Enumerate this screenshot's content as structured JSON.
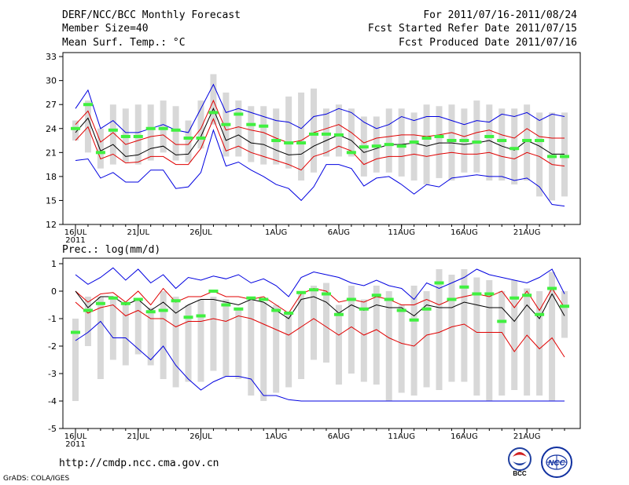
{
  "header": {
    "title": "DERF/NCC/BCC Monthly Forecast",
    "member_size": "Member Size=40",
    "top_var": "Mean Surf. Temp.: °C",
    "period": "For 2011/07/16-2011/08/24",
    "fcst_started": "Fcst Started Refer Date 2011/07/15",
    "fcst_produced": "Fcst Produced Date 2011/07/16"
  },
  "footer": {
    "url": "http://cmdp.ncc.cma.gov.cn",
    "grads": "GrADS: COLA/IGES",
    "logos": [
      "BCC",
      "NCC"
    ]
  },
  "colors": {
    "ensemble_mean": "#000000",
    "spread": "#e00000",
    "extreme": "#0000e0",
    "observed": "#40f040",
    "box": "#d8d8d8"
  },
  "chart_data": [
    {
      "type": "line",
      "title": "Mean Surf. Temp.: °C",
      "x_count": 40,
      "xtick_labels": [
        {
          "index": 0,
          "label": "16JUL",
          "sub": "2011"
        },
        {
          "index": 5,
          "label": "21JUL"
        },
        {
          "index": 10,
          "label": "26JUL"
        },
        {
          "index": 16,
          "label": "1AUG"
        },
        {
          "index": 21,
          "label": "6AUG"
        },
        {
          "index": 26,
          "label": "11AUG"
        },
        {
          "index": 31,
          "label": "16AUG"
        },
        {
          "index": 36,
          "label": "21AUG"
        }
      ],
      "ylim": [
        12,
        33.5
      ],
      "yticks": [
        12,
        15,
        18,
        21,
        24,
        27,
        30,
        33
      ],
      "series": [
        {
          "name": "max",
          "color": "blue",
          "values": [
            26.5,
            28.8,
            24.0,
            25.0,
            23.5,
            23.5,
            24.0,
            24.5,
            23.8,
            23.5,
            26.5,
            29.5,
            26.0,
            26.5,
            26.0,
            25.5,
            25.0,
            24.8,
            24.0,
            25.5,
            25.8,
            26.5,
            26.0,
            24.8,
            24.0,
            24.5,
            25.5,
            25.0,
            25.5,
            25.5,
            25.0,
            24.5,
            25.0,
            24.8,
            25.8,
            25.5,
            26.0,
            25.0,
            25.8,
            25.5
          ]
        },
        {
          "name": "upper",
          "color": "red",
          "values": [
            24.5,
            26.2,
            22.3,
            23.5,
            22.0,
            22.5,
            23.0,
            23.2,
            22.0,
            22.0,
            24.0,
            27.5,
            23.8,
            24.2,
            23.8,
            23.5,
            22.8,
            22.2,
            22.5,
            23.5,
            24.0,
            24.5,
            23.5,
            22.2,
            22.8,
            23.0,
            23.2,
            23.2,
            23.0,
            23.2,
            23.5,
            23.0,
            23.5,
            23.8,
            23.2,
            22.8,
            24.0,
            23.0,
            22.8,
            22.8
          ]
        },
        {
          "name": "mean",
          "color": "black",
          "values": [
            23.5,
            25.3,
            21.2,
            22.0,
            20.5,
            20.7,
            21.5,
            21.8,
            20.7,
            20.8,
            23.0,
            26.5,
            22.5,
            23.2,
            22.2,
            22.0,
            21.3,
            20.7,
            20.8,
            21.8,
            22.5,
            23.2,
            22.5,
            21.0,
            21.5,
            22.0,
            22.0,
            22.2,
            21.8,
            22.2,
            22.2,
            22.0,
            22.2,
            22.5,
            21.8,
            21.3,
            22.5,
            21.8,
            20.8,
            20.8
          ]
        },
        {
          "name": "lower",
          "color": "red",
          "values": [
            22.5,
            24.2,
            20.2,
            20.8,
            19.7,
            19.8,
            20.5,
            20.5,
            19.5,
            19.5,
            21.5,
            25.2,
            21.2,
            21.8,
            21.0,
            20.5,
            20.0,
            19.5,
            18.8,
            20.5,
            21.0,
            21.8,
            21.2,
            19.5,
            20.2,
            20.5,
            20.5,
            20.8,
            20.5,
            20.8,
            21.0,
            20.8,
            20.8,
            21.0,
            20.5,
            20.2,
            21.0,
            20.5,
            19.5,
            19.3
          ]
        },
        {
          "name": "min",
          "color": "blue",
          "values": [
            20.0,
            20.2,
            17.8,
            18.5,
            17.3,
            17.3,
            18.8,
            18.8,
            16.5,
            16.7,
            18.5,
            23.8,
            19.3,
            19.8,
            18.8,
            18.0,
            17.0,
            16.5,
            15.0,
            16.7,
            19.5,
            19.5,
            19.0,
            16.8,
            17.8,
            18.0,
            17.0,
            15.8,
            17.0,
            16.7,
            17.8,
            18.0,
            18.2,
            18.0,
            18.0,
            17.5,
            17.8,
            16.7,
            14.5,
            14.3
          ]
        }
      ],
      "observed": [
        24.0,
        27.0,
        21.0,
        23.8,
        23.0,
        23.0,
        24.0,
        24.0,
        23.8,
        22.8,
        22.8,
        26.0,
        24.5,
        25.8,
        24.5,
        24.3,
        22.5,
        22.2,
        22.2,
        23.3,
        23.3,
        23.2,
        21.0,
        21.7,
        21.8,
        22.0,
        21.8,
        22.3,
        22.8,
        23.0,
        22.5,
        22.5,
        22.3,
        23.0,
        22.5,
        21.5,
        22.5,
        22.5,
        20.5,
        20.5
      ],
      "boxes": [
        [
          22.5,
          25.0
        ],
        [
          21.0,
          27.5
        ],
        [
          19.0,
          24.0
        ],
        [
          19.5,
          27.0
        ],
        [
          19.8,
          26.5
        ],
        [
          19.5,
          27.0
        ],
        [
          20.0,
          27.0
        ],
        [
          21.0,
          27.5
        ],
        [
          20.0,
          26.8
        ],
        [
          19.8,
          25.0
        ],
        [
          21.5,
          27.5
        ],
        [
          24.5,
          30.8
        ],
        [
          20.5,
          28.5
        ],
        [
          20.5,
          27.5
        ],
        [
          19.8,
          26.8
        ],
        [
          19.5,
          26.8
        ],
        [
          19.5,
          26.5
        ],
        [
          19.0,
          28.0
        ],
        [
          17.5,
          28.5
        ],
        [
          18.5,
          29.0
        ],
        [
          20.5,
          26.5
        ],
        [
          20.5,
          27.0
        ],
        [
          20.5,
          26.5
        ],
        [
          18.0,
          25.5
        ],
        [
          18.5,
          25.5
        ],
        [
          18.5,
          26.5
        ],
        [
          18.0,
          26.5
        ],
        [
          17.5,
          26.0
        ],
        [
          17.0,
          27.0
        ],
        [
          17.8,
          26.8
        ],
        [
          17.5,
          27.0
        ],
        [
          18.5,
          26.5
        ],
        [
          18.5,
          27.5
        ],
        [
          17.5,
          27.0
        ],
        [
          17.5,
          26.5
        ],
        [
          17.0,
          26.5
        ],
        [
          17.5,
          27.0
        ],
        [
          15.5,
          26.0
        ],
        [
          15.0,
          26.0
        ],
        [
          15.5,
          26.0
        ]
      ]
    },
    {
      "type": "line",
      "title": "Prec.: log(mm/d)",
      "x_count": 40,
      "xtick_labels": [
        {
          "index": 0,
          "label": "16JUL",
          "sub": "2011"
        },
        {
          "index": 5,
          "label": "21JUL"
        },
        {
          "index": 10,
          "label": "26JUL"
        },
        {
          "index": 16,
          "label": "1AUG"
        },
        {
          "index": 21,
          "label": "6AUG"
        },
        {
          "index": 26,
          "label": "11AUG"
        },
        {
          "index": 31,
          "label": "16AUG"
        },
        {
          "index": 36,
          "label": "21AUG"
        }
      ],
      "ylim": [
        -5,
        1.2
      ],
      "yticks": [
        -5,
        -4,
        -3,
        -2,
        -1,
        0,
        1
      ],
      "series": [
        {
          "name": "max",
          "color": "blue",
          "values": [
            0.6,
            0.25,
            0.5,
            0.85,
            0.4,
            0.8,
            0.3,
            0.6,
            0.1,
            0.5,
            0.4,
            0.55,
            0.45,
            0.6,
            0.3,
            0.45,
            0.2,
            -0.2,
            0.5,
            0.7,
            0.6,
            0.5,
            0.3,
            0.2,
            0.4,
            0.2,
            0.1,
            -0.3,
            0.3,
            0.1,
            0.3,
            0.5,
            0.8,
            0.6,
            0.5,
            0.4,
            0.3,
            0.5,
            0.8,
            -0.1
          ]
        },
        {
          "name": "upper",
          "color": "red",
          "values": [
            0.0,
            -0.4,
            -0.1,
            -0.05,
            -0.4,
            0.0,
            -0.5,
            0.1,
            -0.4,
            -0.2,
            -0.2,
            0.0,
            -0.2,
            -0.2,
            -0.3,
            -0.2,
            -0.5,
            -0.8,
            -0.1,
            0.1,
            0.0,
            -0.4,
            -0.3,
            -0.4,
            -0.2,
            -0.3,
            -0.5,
            -0.5,
            -0.3,
            -0.5,
            -0.3,
            -0.2,
            -0.1,
            -0.2,
            0.0,
            -0.6,
            0.0,
            -0.7,
            0.1,
            -0.6
          ]
        },
        {
          "name": "mean",
          "color": "black",
          "values": [
            0.0,
            -0.6,
            -0.2,
            -0.2,
            -0.5,
            -0.3,
            -0.7,
            -0.4,
            -0.8,
            -0.5,
            -0.3,
            -0.3,
            -0.4,
            -0.5,
            -0.3,
            -0.4,
            -0.7,
            -1.0,
            -0.3,
            -0.2,
            -0.4,
            -0.8,
            -0.5,
            -0.7,
            -0.5,
            -0.6,
            -0.6,
            -0.9,
            -0.5,
            -0.6,
            -0.6,
            -0.4,
            -0.5,
            -0.6,
            -0.6,
            -1.1,
            -0.5,
            -1.0,
            -0.1,
            -0.9
          ]
        },
        {
          "name": "lower",
          "color": "red",
          "values": [
            -0.4,
            -0.8,
            -0.6,
            -0.5,
            -0.9,
            -0.7,
            -1.0,
            -1.0,
            -1.3,
            -1.1,
            -1.1,
            -1.0,
            -1.1,
            -0.9,
            -1.0,
            -1.2,
            -1.4,
            -1.6,
            -1.3,
            -1.0,
            -1.3,
            -1.6,
            -1.3,
            -1.6,
            -1.4,
            -1.7,
            -1.9,
            -2.0,
            -1.6,
            -1.5,
            -1.3,
            -1.2,
            -1.5,
            -1.5,
            -1.5,
            -2.2,
            -1.6,
            -2.1,
            -1.7,
            -2.4
          ]
        },
        {
          "name": "min",
          "color": "blue",
          "values": [
            -1.8,
            -1.5,
            -1.1,
            -1.7,
            -1.7,
            -2.1,
            -2.5,
            -2.0,
            -2.7,
            -3.2,
            -3.6,
            -3.3,
            -3.1,
            -3.1,
            -3.2,
            -3.8,
            -3.8,
            -3.95,
            -4.0,
            -4.0,
            -4.0,
            -4.0,
            -4.0,
            -4.0,
            -4.0,
            -4.0,
            -4.0,
            -4.0,
            -4.0,
            -4.0,
            -4.0,
            -4.0,
            -4.0,
            -4.0,
            -4.0,
            -4.0,
            -4.0,
            -4.0,
            -4.0,
            -4.0
          ]
        },
        {
          "name": "observed_proxy",
          "color": "none",
          "values": []
        }
      ],
      "observed": [
        -1.5,
        -0.7,
        -0.45,
        -0.25,
        -0.45,
        -0.3,
        -0.75,
        -0.7,
        -0.35,
        -0.95,
        -0.9,
        0.0,
        -0.5,
        -0.65,
        -0.25,
        -0.3,
        -0.7,
        -0.8,
        -0.05,
        0.05,
        -0.1,
        -0.85,
        -0.3,
        -0.65,
        -0.15,
        -0.3,
        -0.7,
        -1.05,
        -0.65,
        0.3,
        -0.3,
        0.15,
        -0.1,
        -0.1,
        -1.1,
        -0.25,
        -0.15,
        -0.85,
        0.1,
        -0.55
      ],
      "boxes": [
        [
          -4.0,
          -1.0
        ],
        [
          -2.0,
          -0.2
        ],
        [
          -3.2,
          -0.2
        ],
        [
          -2.5,
          -0.2
        ],
        [
          -2.7,
          -0.5
        ],
        [
          -2.3,
          -0.3
        ],
        [
          -2.7,
          -0.6
        ],
        [
          -3.2,
          0.0
        ],
        [
          -3.5,
          -0.2
        ],
        [
          -3.3,
          -0.5
        ],
        [
          -3.3,
          -0.3
        ],
        [
          -2.9,
          -0.2
        ],
        [
          -3.1,
          -0.3
        ],
        [
          -3.2,
          -0.6
        ],
        [
          -3.8,
          -0.2
        ],
        [
          -4.0,
          -0.4
        ],
        [
          -3.7,
          -0.5
        ],
        [
          -3.5,
          -0.8
        ],
        [
          -3.2,
          0.0
        ],
        [
          -2.5,
          0.2
        ],
        [
          -2.6,
          0.3
        ],
        [
          -3.4,
          -0.5
        ],
        [
          -3.0,
          0.2
        ],
        [
          -3.3,
          -0.3
        ],
        [
          -3.4,
          0.2
        ],
        [
          -4.0,
          0.0
        ],
        [
          -3.7,
          -0.5
        ],
        [
          -3.8,
          0.2
        ],
        [
          -3.5,
          0.0
        ],
        [
          -3.6,
          0.8
        ],
        [
          -3.3,
          0.6
        ],
        [
          -3.3,
          0.8
        ],
        [
          -3.8,
          0.5
        ],
        [
          -4.0,
          0.4
        ],
        [
          -3.8,
          0.0
        ],
        [
          -3.6,
          0.4
        ],
        [
          -3.8,
          0.1
        ],
        [
          -3.8,
          0.0
        ],
        [
          -4.0,
          0.7
        ],
        [
          -1.7,
          0.0
        ]
      ]
    }
  ]
}
